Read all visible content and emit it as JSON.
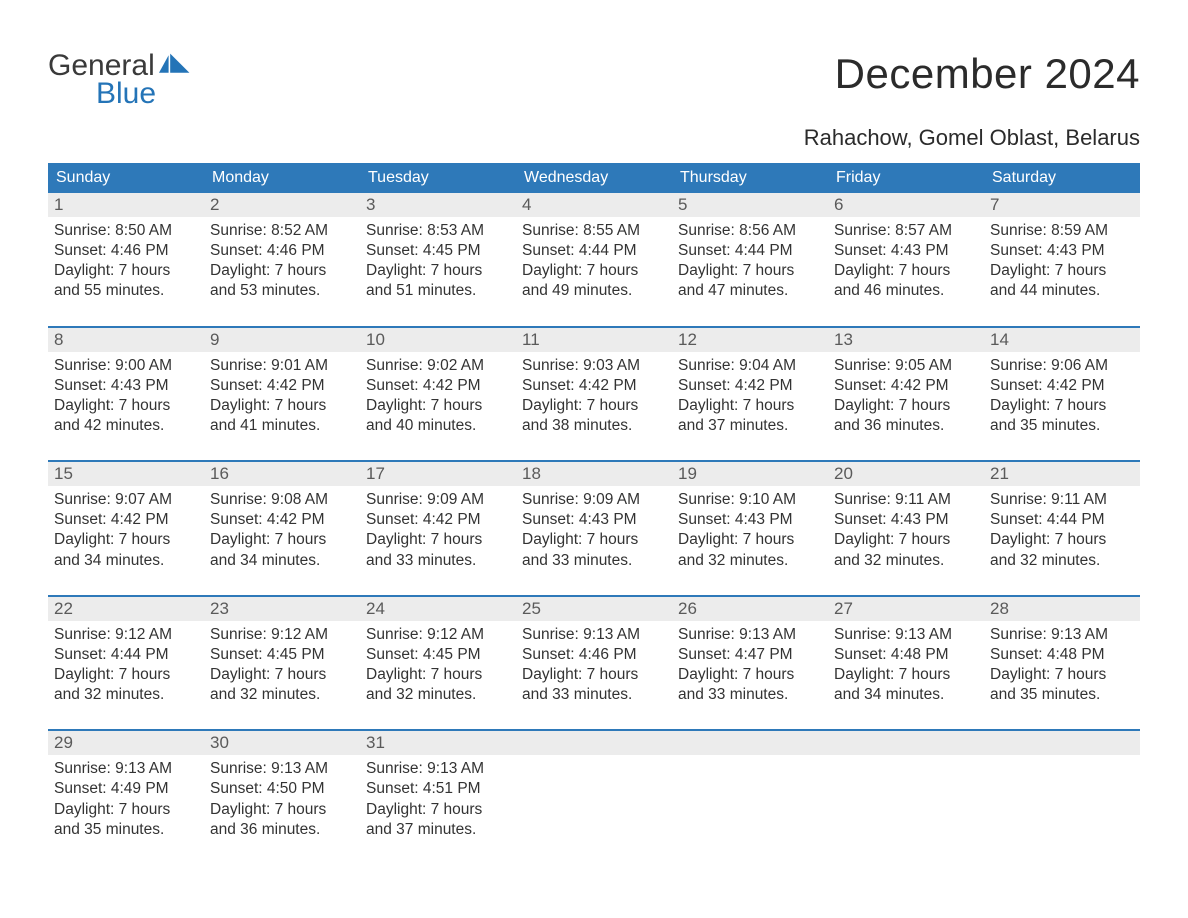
{
  "logo": {
    "word1": "General",
    "word2": "Blue",
    "word1_color": "#3a3a3a",
    "word2_color": "#2474b7",
    "sail_color": "#2474b7"
  },
  "title": "December 2024",
  "location": "Rahachow, Gomel Oblast, Belarus",
  "colors": {
    "header_bg": "#2e79b9",
    "header_text": "#ffffff",
    "daynum_bg": "#ececec",
    "daynum_text": "#5a5a5a",
    "body_text": "#333333",
    "divider": "#2e79b9",
    "page_bg": "#ffffff"
  },
  "typography": {
    "title_fontsize": 42,
    "location_fontsize": 22,
    "dow_fontsize": 16,
    "daynum_fontsize": 17,
    "body_fontsize": 15.5
  },
  "days_of_week": [
    "Sunday",
    "Monday",
    "Tuesday",
    "Wednesday",
    "Thursday",
    "Friday",
    "Saturday"
  ],
  "weeks": [
    [
      {
        "n": "1",
        "sunrise": "8:50 AM",
        "sunset": "4:46 PM",
        "d1": "Daylight: 7 hours",
        "d2": "and 55 minutes."
      },
      {
        "n": "2",
        "sunrise": "8:52 AM",
        "sunset": "4:46 PM",
        "d1": "Daylight: 7 hours",
        "d2": "and 53 minutes."
      },
      {
        "n": "3",
        "sunrise": "8:53 AM",
        "sunset": "4:45 PM",
        "d1": "Daylight: 7 hours",
        "d2": "and 51 minutes."
      },
      {
        "n": "4",
        "sunrise": "8:55 AM",
        "sunset": "4:44 PM",
        "d1": "Daylight: 7 hours",
        "d2": "and 49 minutes."
      },
      {
        "n": "5",
        "sunrise": "8:56 AM",
        "sunset": "4:44 PM",
        "d1": "Daylight: 7 hours",
        "d2": "and 47 minutes."
      },
      {
        "n": "6",
        "sunrise": "8:57 AM",
        "sunset": "4:43 PM",
        "d1": "Daylight: 7 hours",
        "d2": "and 46 minutes."
      },
      {
        "n": "7",
        "sunrise": "8:59 AM",
        "sunset": "4:43 PM",
        "d1": "Daylight: 7 hours",
        "d2": "and 44 minutes."
      }
    ],
    [
      {
        "n": "8",
        "sunrise": "9:00 AM",
        "sunset": "4:43 PM",
        "d1": "Daylight: 7 hours",
        "d2": "and 42 minutes."
      },
      {
        "n": "9",
        "sunrise": "9:01 AM",
        "sunset": "4:42 PM",
        "d1": "Daylight: 7 hours",
        "d2": "and 41 minutes."
      },
      {
        "n": "10",
        "sunrise": "9:02 AM",
        "sunset": "4:42 PM",
        "d1": "Daylight: 7 hours",
        "d2": "and 40 minutes."
      },
      {
        "n": "11",
        "sunrise": "9:03 AM",
        "sunset": "4:42 PM",
        "d1": "Daylight: 7 hours",
        "d2": "and 38 minutes."
      },
      {
        "n": "12",
        "sunrise": "9:04 AM",
        "sunset": "4:42 PM",
        "d1": "Daylight: 7 hours",
        "d2": "and 37 minutes."
      },
      {
        "n": "13",
        "sunrise": "9:05 AM",
        "sunset": "4:42 PM",
        "d1": "Daylight: 7 hours",
        "d2": "and 36 minutes."
      },
      {
        "n": "14",
        "sunrise": "9:06 AM",
        "sunset": "4:42 PM",
        "d1": "Daylight: 7 hours",
        "d2": "and 35 minutes."
      }
    ],
    [
      {
        "n": "15",
        "sunrise": "9:07 AM",
        "sunset": "4:42 PM",
        "d1": "Daylight: 7 hours",
        "d2": "and 34 minutes."
      },
      {
        "n": "16",
        "sunrise": "9:08 AM",
        "sunset": "4:42 PM",
        "d1": "Daylight: 7 hours",
        "d2": "and 34 minutes."
      },
      {
        "n": "17",
        "sunrise": "9:09 AM",
        "sunset": "4:42 PM",
        "d1": "Daylight: 7 hours",
        "d2": "and 33 minutes."
      },
      {
        "n": "18",
        "sunrise": "9:09 AM",
        "sunset": "4:43 PM",
        "d1": "Daylight: 7 hours",
        "d2": "and 33 minutes."
      },
      {
        "n": "19",
        "sunrise": "9:10 AM",
        "sunset": "4:43 PM",
        "d1": "Daylight: 7 hours",
        "d2": "and 32 minutes."
      },
      {
        "n": "20",
        "sunrise": "9:11 AM",
        "sunset": "4:43 PM",
        "d1": "Daylight: 7 hours",
        "d2": "and 32 minutes."
      },
      {
        "n": "21",
        "sunrise": "9:11 AM",
        "sunset": "4:44 PM",
        "d1": "Daylight: 7 hours",
        "d2": "and 32 minutes."
      }
    ],
    [
      {
        "n": "22",
        "sunrise": "9:12 AM",
        "sunset": "4:44 PM",
        "d1": "Daylight: 7 hours",
        "d2": "and 32 minutes."
      },
      {
        "n": "23",
        "sunrise": "9:12 AM",
        "sunset": "4:45 PM",
        "d1": "Daylight: 7 hours",
        "d2": "and 32 minutes."
      },
      {
        "n": "24",
        "sunrise": "9:12 AM",
        "sunset": "4:45 PM",
        "d1": "Daylight: 7 hours",
        "d2": "and 32 minutes."
      },
      {
        "n": "25",
        "sunrise": "9:13 AM",
        "sunset": "4:46 PM",
        "d1": "Daylight: 7 hours",
        "d2": "and 33 minutes."
      },
      {
        "n": "26",
        "sunrise": "9:13 AM",
        "sunset": "4:47 PM",
        "d1": "Daylight: 7 hours",
        "d2": "and 33 minutes."
      },
      {
        "n": "27",
        "sunrise": "9:13 AM",
        "sunset": "4:48 PM",
        "d1": "Daylight: 7 hours",
        "d2": "and 34 minutes."
      },
      {
        "n": "28",
        "sunrise": "9:13 AM",
        "sunset": "4:48 PM",
        "d1": "Daylight: 7 hours",
        "d2": "and 35 minutes."
      }
    ],
    [
      {
        "n": "29",
        "sunrise": "9:13 AM",
        "sunset": "4:49 PM",
        "d1": "Daylight: 7 hours",
        "d2": "and 35 minutes."
      },
      {
        "n": "30",
        "sunrise": "9:13 AM",
        "sunset": "4:50 PM",
        "d1": "Daylight: 7 hours",
        "d2": "and 36 minutes."
      },
      {
        "n": "31",
        "sunrise": "9:13 AM",
        "sunset": "4:51 PM",
        "d1": "Daylight: 7 hours",
        "d2": "and 37 minutes."
      },
      {
        "n": "",
        "sunrise": "",
        "sunset": "",
        "d1": "",
        "d2": ""
      },
      {
        "n": "",
        "sunrise": "",
        "sunset": "",
        "d1": "",
        "d2": ""
      },
      {
        "n": "",
        "sunrise": "",
        "sunset": "",
        "d1": "",
        "d2": ""
      },
      {
        "n": "",
        "sunrise": "",
        "sunset": "",
        "d1": "",
        "d2": ""
      }
    ]
  ],
  "labels": {
    "sunrise_prefix": "Sunrise: ",
    "sunset_prefix": "Sunset: "
  }
}
